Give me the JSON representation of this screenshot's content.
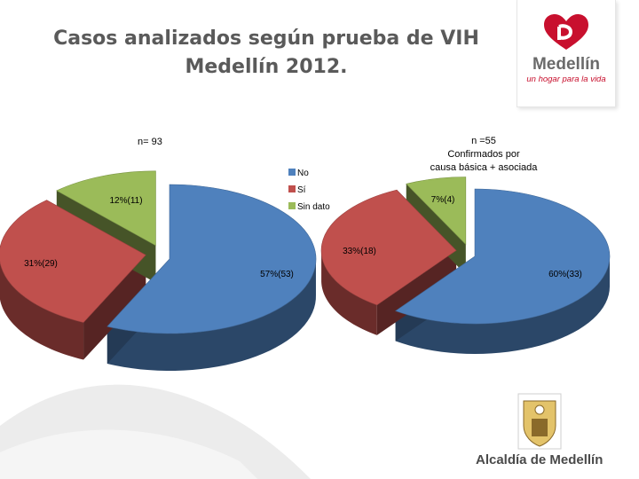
{
  "header": {
    "title_line1": "Casos analizados según prueba de VIH",
    "title_line2": "Medellín 2012."
  },
  "logo": {
    "name": "Medellín",
    "tagline": "un hogar para la vida"
  },
  "footer": {
    "seal_caption": "Alcaldía de Medellín"
  },
  "legend": [
    "No",
    "Sí",
    "Sin dato"
  ],
  "colors": {
    "no": "#4f81bd",
    "si": "#c0504d",
    "sin_dato": "#9bbb59",
    "brand_red": "#c8102e"
  },
  "chart_data": [
    {
      "type": "pie",
      "style": "3d-exploded",
      "title": "n= 93",
      "categories": [
        "No",
        "Sí",
        "Sin dato"
      ],
      "values": [
        53,
        29,
        11
      ],
      "labels": [
        "57%(53)",
        "31%(29)",
        "12%(11)"
      ],
      "legend_position": "right"
    },
    {
      "type": "pie",
      "style": "3d-exploded",
      "title": "n =55\nConfirmados por\ncausa básica + asociada",
      "categories": [
        "No",
        "Sí",
        "Sin dato"
      ],
      "values": [
        33,
        18,
        4
      ],
      "labels": [
        "60%(33)",
        "33%(18)",
        "7%(4)"
      ]
    }
  ]
}
